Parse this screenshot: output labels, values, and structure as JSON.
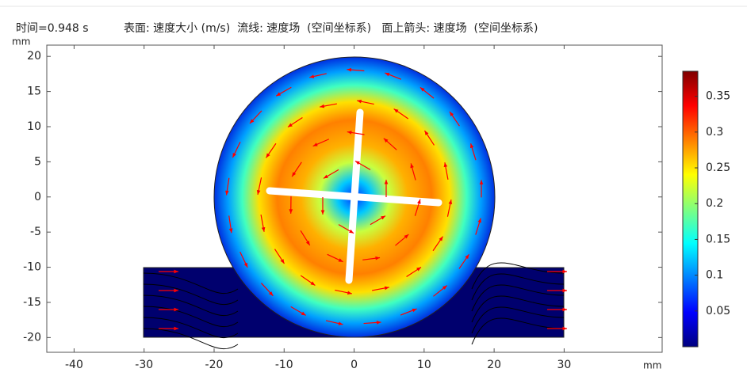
{
  "chart_data": {
    "type": "surface",
    "time_label": "时间=0.948 s",
    "title": "表面: 速度大小 (m/s)  流线: 速度场  (空间坐标系)   面上箭头: 速度场  (空间坐标系)",
    "xlabel": "mm",
    "ylabel": "mm",
    "xlim": [
      -43.9,
      44
    ],
    "ylim": [
      -22.1,
      21.6
    ],
    "xticks": [
      -40,
      -30,
      -20,
      -10,
      0,
      10,
      20,
      30
    ],
    "yticks": [
      -20,
      -15,
      -10,
      -5,
      0,
      5,
      10,
      15,
      20
    ],
    "colorbar": {
      "lim": [
        0,
        0.385
      ],
      "ticks": [
        0.05,
        0.1,
        0.15,
        0.2,
        0.25,
        0.3,
        0.35
      ],
      "colors": [
        "#00007f",
        "#0000ff",
        "#007fff",
        "#00ffff",
        "#7fff7f",
        "#ffff00",
        "#ff7f00",
        "#ff0000",
        "#7f0000"
      ]
    },
    "arrow_color": "#ff0000"
  }
}
